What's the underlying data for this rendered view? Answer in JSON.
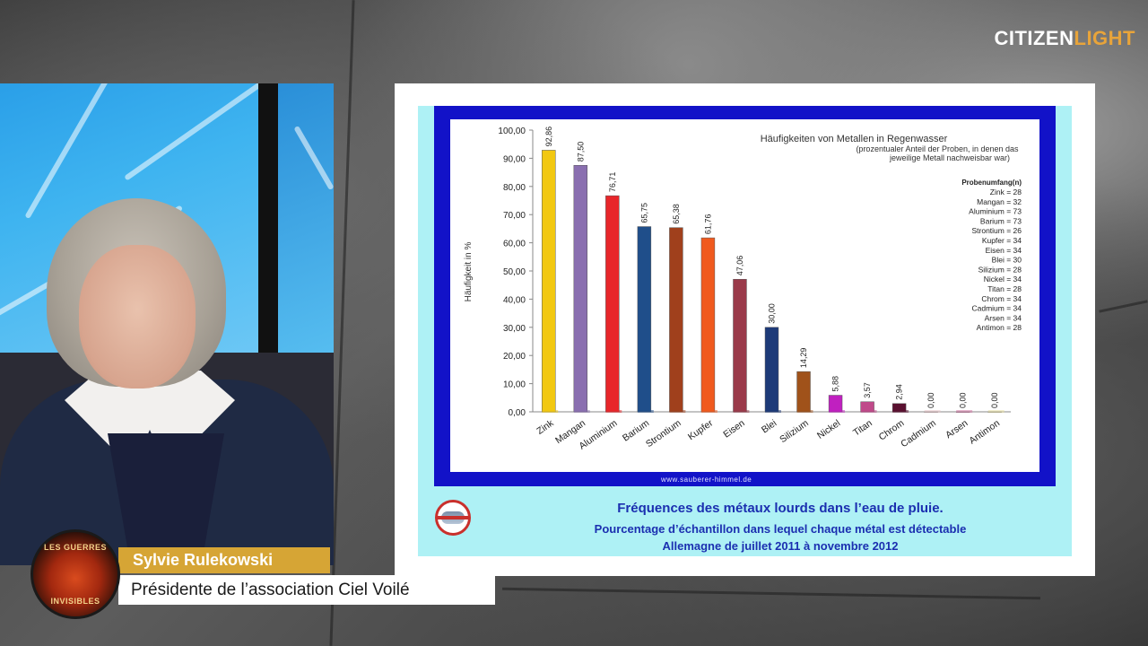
{
  "brand": {
    "logo_main": "CITIZEN",
    "logo_accent": "LIGHT",
    "accent_color": "#e8a43a"
  },
  "lower_third": {
    "name": "Sylvie Rulekowski",
    "title": "Présidente de l’association Ciel Voilé",
    "badge_top": "LES GUERRES",
    "badge_bottom": "INVISIBLES",
    "name_bar_color": "#d6a535"
  },
  "slide": {
    "caption_line1": "Fréquences des métaux lourds dans l’eau de pluie.",
    "caption_line2": "Pourcentage d’échantillon dans lequel chaque métal est détectable",
    "caption_line3": "Allemagne de juillet 2011 à novembre 2012",
    "source_url": "www.sauberer-himmel.de",
    "caption_color": "#1b2fb0",
    "icon": "no-chemtrail-icon"
  },
  "chart_data": {
    "type": "bar",
    "title": "Häufigkeiten von Metallen in Regenwasser",
    "subtitle_line1": "(prozentualer Anteil der Proben, in denen das",
    "subtitle_line2": "jeweilige Metall nachweisbar war)",
    "ylabel": "Häufigkeit in %",
    "ylim": [
      0,
      100
    ],
    "yticks": [
      "0,00",
      "10,00",
      "20,00",
      "30,00",
      "40,00",
      "50,00",
      "60,00",
      "70,00",
      "80,00",
      "90,00",
      "100,00"
    ],
    "categories": [
      "Zink",
      "Mangan",
      "Aluminium",
      "Barium",
      "Strontium",
      "Kupfer",
      "Eisen",
      "Blei",
      "Silizium",
      "Nickel",
      "Titan",
      "Chrom",
      "Cadmium",
      "Arsen",
      "Antimon"
    ],
    "values": [
      92.86,
      87.5,
      76.71,
      65.75,
      65.38,
      61.76,
      47.06,
      30.0,
      14.29,
      5.88,
      3.57,
      2.94,
      0.0,
      0.0,
      0.0
    ],
    "value_labels": [
      "92,86",
      "87,50",
      "76,71",
      "65,75",
      "65,38",
      "61,76",
      "47,06",
      "30,00",
      "14,29",
      "5,88",
      "3,57",
      "2,94",
      "0,00",
      "0,00",
      "0,00"
    ],
    "colors": [
      "#f2c811",
      "#8a6fb0",
      "#e8262a",
      "#1f4e8a",
      "#a0401c",
      "#f05a1e",
      "#9a3a4a",
      "#1d3a78",
      "#a0521a",
      "#c020c0",
      "#c04a8a",
      "#5a1030",
      "#e8c4c8",
      "#d070a0",
      "#e8e0a0"
    ],
    "legend_title": "Probenumfang(n)",
    "legend_items": [
      "Zink = 28",
      "Mangan = 32",
      "Aluminium = 73",
      "Barium = 73",
      "Strontium = 26",
      "Kupfer = 34",
      "Eisen = 34",
      "Blei = 30",
      "Silizium = 28",
      "Nickel = 34",
      "Titan = 28",
      "Chrom = 34",
      "Cadmium = 34",
      "Arsen = 34",
      "Antimon = 28"
    ],
    "legend_position": "top-right",
    "grid": false
  }
}
